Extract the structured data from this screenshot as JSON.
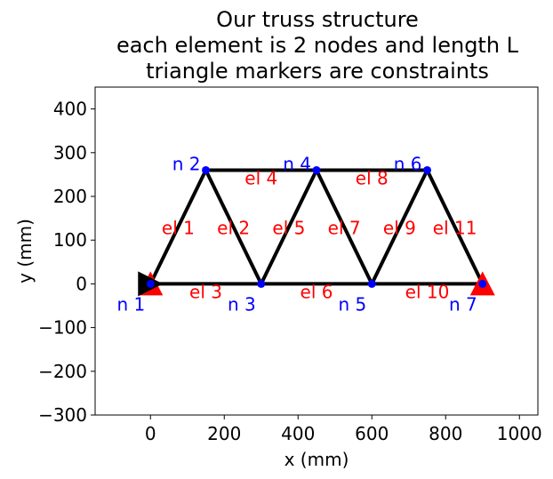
{
  "title_lines": [
    "Our truss structure",
    "each element is 2 nodes and length L",
    "triangle markers are constraints"
  ],
  "chart_data": {
    "type": "diagram",
    "xlabel": "x (mm)",
    "ylabel": "y (mm)",
    "xlim": [
      -150,
      1050
    ],
    "ylim": [
      -300,
      450
    ],
    "xticks": [
      0,
      200,
      400,
      600,
      800,
      1000
    ],
    "yticks": [
      -300,
      -200,
      -100,
      0,
      100,
      200,
      300,
      400
    ],
    "xtick_labels": [
      "0",
      "200",
      "400",
      "600",
      "800",
      "1000"
    ],
    "ytick_labels": [
      "−300",
      "−200",
      "−100",
      "0",
      "100",
      "200",
      "300",
      "400"
    ],
    "grid": false,
    "colors": {
      "element": "#000000",
      "node": "#0000ff",
      "node_label": "#0000ff",
      "element_label": "#ff0000",
      "constraint_fixed": "#000000",
      "constraint_roller": "#ff0000"
    },
    "nodes": [
      {
        "id": 1,
        "label": "n 1",
        "x": 0,
        "y": 0
      },
      {
        "id": 2,
        "label": "n 2",
        "x": 150,
        "y": 260
      },
      {
        "id": 3,
        "label": "n 3",
        "x": 300,
        "y": 0
      },
      {
        "id": 4,
        "label": "n 4",
        "x": 450,
        "y": 260
      },
      {
        "id": 5,
        "label": "n 5",
        "x": 600,
        "y": 0
      },
      {
        "id": 6,
        "label": "n 6",
        "x": 750,
        "y": 260
      },
      {
        "id": 7,
        "label": "n 7",
        "x": 900,
        "y": 0
      }
    ],
    "elements": [
      {
        "label": "el 1",
        "n1": 1,
        "n2": 2
      },
      {
        "label": "el 2",
        "n1": 2,
        "n2": 3
      },
      {
        "label": "el 3",
        "n1": 1,
        "n2": 3
      },
      {
        "label": "el 4",
        "n1": 2,
        "n2": 4
      },
      {
        "label": "el 5",
        "n1": 3,
        "n2": 4
      },
      {
        "label": "el 6",
        "n1": 3,
        "n2": 5
      },
      {
        "label": "el 7",
        "n1": 4,
        "n2": 5
      },
      {
        "label": "el 8",
        "n1": 4,
        "n2": 6
      },
      {
        "label": "el 9",
        "n1": 5,
        "n2": 6
      },
      {
        "label": "el 10",
        "n1": 5,
        "n2": 7
      },
      {
        "label": "el 11",
        "n1": 6,
        "n2": 7
      }
    ],
    "constraints": [
      {
        "node": 1,
        "direction": "y",
        "marker": "triangle-up",
        "color": "#ff0000"
      },
      {
        "node": 1,
        "direction": "x",
        "marker": "triangle-right",
        "color": "#000000"
      },
      {
        "node": 7,
        "direction": "y",
        "marker": "triangle-up",
        "color": "#ff0000"
      }
    ]
  }
}
